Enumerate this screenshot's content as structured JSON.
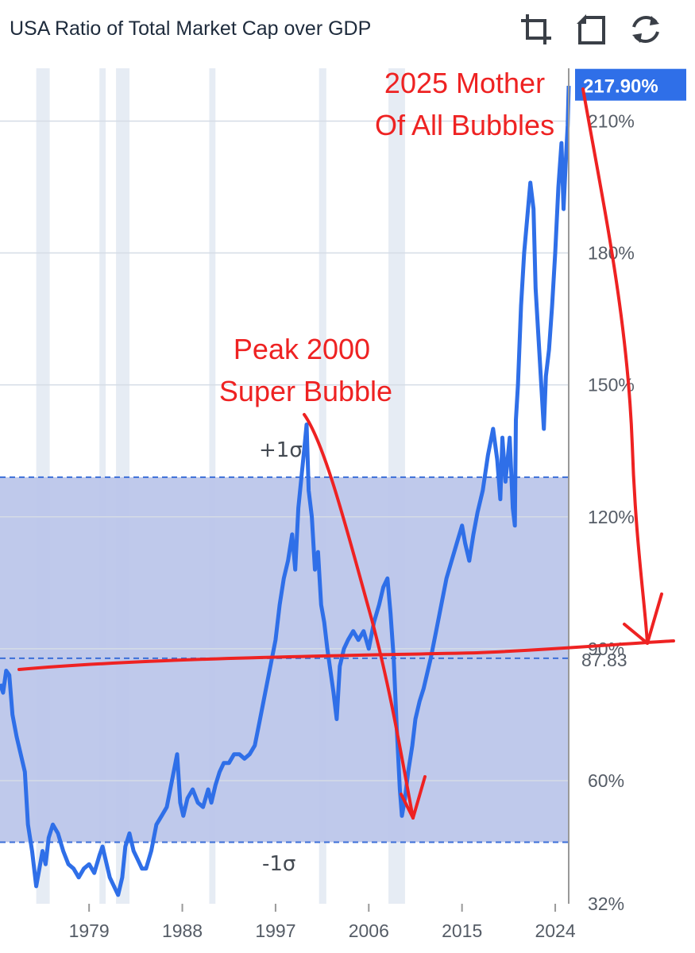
{
  "title": "USA Ratio of Total Market Cap over GDP",
  "toolbar": [
    {
      "name": "crop-icon"
    },
    {
      "name": "restore-icon"
    },
    {
      "name": "refresh-icon"
    }
  ],
  "colors": {
    "line": "#2f6fe8",
    "band": "#bcc6ea",
    "band_line": "#3c6fd8",
    "recession": "#e6ecf4",
    "annotation": "#ee2222",
    "badge": "#2f6fe8"
  },
  "annotations": {
    "bubble_2025": [
      "2025 Mother",
      "Of All Bubbles"
    ],
    "bubble_2000": [
      "Peak 2000",
      "Super Bubble"
    ]
  },
  "sigma": {
    "plus_label": "+1σ",
    "minus_label": "-1σ"
  },
  "chart_data": {
    "type": "line",
    "title": "USA Ratio of Total Market Cap over GDP",
    "xlabel": "",
    "ylabel": "",
    "xlim": [
      1970.4,
      2025.3
    ],
    "ylim": [
      32,
      222
    ],
    "x_ticks": [
      1979,
      1988,
      1997,
      2006,
      2015,
      2024
    ],
    "y_ticks": [
      {
        "value": 32,
        "label": "32%"
      },
      {
        "value": 60,
        "label": "60%"
      },
      {
        "value": 90,
        "label": "90%"
      },
      {
        "value": 120,
        "label": "120%"
      },
      {
        "value": 150,
        "label": "150%"
      },
      {
        "value": 180,
        "label": "180%"
      },
      {
        "value": 210,
        "label": "210%"
      }
    ],
    "current_value_label": "217.90%",
    "current_value": 217.9,
    "mean_label": "87.83",
    "mean": 87.83,
    "plus_1_sigma": 129,
    "minus_1_sigma": 46,
    "recession_periods": [
      [
        1973.9,
        1975.2
      ],
      [
        1980.0,
        1980.6
      ],
      [
        1981.6,
        1982.9
      ],
      [
        1990.6,
        1991.2
      ],
      [
        2001.2,
        2001.9
      ],
      [
        2007.9,
        2009.5
      ]
    ],
    "series": [
      {
        "name": "",
        "x": [
          1970.4,
          1970.7,
          1971.0,
          1971.3,
          1971.6,
          1972.0,
          1972.4,
          1972.8,
          1973.1,
          1973.5,
          1973.9,
          1974.2,
          1974.5,
          1974.8,
          1975.1,
          1975.5,
          1976.0,
          1976.5,
          1977.0,
          1977.5,
          1978.0,
          1978.5,
          1979.0,
          1979.5,
          1980.0,
          1980.3,
          1980.7,
          1981.0,
          1981.4,
          1981.8,
          1982.2,
          1982.5,
          1982.9,
          1983.3,
          1983.7,
          1984.1,
          1984.5,
          1985.0,
          1985.5,
          1986.0,
          1986.5,
          1987.0,
          1987.5,
          1987.8,
          1988.1,
          1988.5,
          1989.0,
          1989.5,
          1990.0,
          1990.5,
          1990.8,
          1991.2,
          1991.6,
          1992.0,
          1992.5,
          1993.0,
          1993.5,
          1994.0,
          1994.5,
          1995.0,
          1995.5,
          1996.0,
          1996.5,
          1997.0,
          1997.4,
          1997.8,
          1998.2,
          1998.6,
          1998.9,
          1999.2,
          1999.5,
          1999.8,
          2000.0,
          2000.2,
          2000.5,
          2000.8,
          2001.1,
          2001.4,
          2001.7,
          2002.0,
          2002.3,
          2002.6,
          2002.9,
          2003.2,
          2003.6,
          2004.0,
          2004.5,
          2005.0,
          2005.5,
          2006.0,
          2006.5,
          2007.0,
          2007.4,
          2007.8,
          2008.1,
          2008.4,
          2008.7,
          2009.0,
          2009.2,
          2009.5,
          2009.8,
          2010.2,
          2010.5,
          2010.9,
          2011.3,
          2011.7,
          2012.0,
          2012.5,
          2013.0,
          2013.5,
          2014.0,
          2014.5,
          2015.0,
          2015.3,
          2015.7,
          2016.1,
          2016.5,
          2017.0,
          2017.5,
          2018.0,
          2018.4,
          2018.7,
          2018.9,
          2019.2,
          2019.6,
          2019.9,
          2020.1,
          2020.2,
          2020.4,
          2020.7,
          2021.0,
          2021.3,
          2021.6,
          2021.9,
          2022.1,
          2022.4,
          2022.7,
          2022.9,
          2023.1,
          2023.4,
          2023.7,
          2024.0,
          2024.3,
          2024.6,
          2024.8,
          2025.0,
          2025.2,
          2025.3
        ],
        "y": [
          82,
          80,
          85,
          84,
          75,
          70,
          66,
          62,
          50,
          44,
          36,
          40,
          44,
          41,
          47,
          50,
          48,
          44,
          41,
          40,
          38,
          40,
          41,
          39,
          43,
          45,
          41,
          38,
          36,
          34,
          38,
          45,
          48,
          44,
          42,
          40,
          40,
          44,
          50,
          52,
          54,
          60,
          66,
          55,
          52,
          56,
          58,
          55,
          54,
          58,
          55,
          59,
          62,
          64,
          64,
          66,
          66,
          65,
          66,
          68,
          74,
          80,
          86,
          92,
          100,
          106,
          110,
          116,
          108,
          122,
          129,
          136,
          141,
          126,
          120,
          108,
          112,
          100,
          96,
          90,
          85,
          80,
          74,
          86,
          90,
          92,
          94,
          92,
          94,
          90,
          96,
          100,
          104,
          106,
          98,
          88,
          72,
          58,
          52,
          56,
          62,
          68,
          74,
          78,
          81,
          85,
          88,
          94,
          100,
          106,
          110,
          114,
          118,
          114,
          110,
          116,
          121,
          126,
          134,
          140,
          133,
          124,
          138,
          128,
          138,
          122,
          118,
          142,
          150,
          168,
          180,
          188,
          196,
          190,
          172,
          160,
          148,
          140,
          152,
          158,
          168,
          180,
          195,
          205,
          190,
          200,
          209,
          218
        ]
      }
    ]
  }
}
